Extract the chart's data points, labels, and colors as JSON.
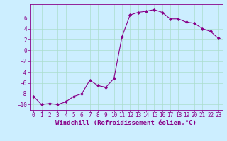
{
  "x": [
    0,
    1,
    2,
    3,
    4,
    5,
    6,
    7,
    8,
    9,
    10,
    11,
    12,
    13,
    14,
    15,
    16,
    17,
    18,
    19,
    20,
    21,
    22,
    23
  ],
  "y": [
    -8.5,
    -10.0,
    -9.8,
    -10.0,
    -9.5,
    -8.5,
    -8.0,
    -5.5,
    -6.5,
    -6.8,
    -5.2,
    2.5,
    6.5,
    7.0,
    7.2,
    7.5,
    7.0,
    5.8,
    5.8,
    5.2,
    5.0,
    4.0,
    3.5,
    2.2
  ],
  "line_color": "#880088",
  "marker": "D",
  "markersize": 2.0,
  "linewidth": 0.8,
  "bg_color": "#cceeff",
  "grid_color": "#aaddcc",
  "xlabel": "Windchill (Refroidissement éolien,°C)",
  "xlim": [
    -0.5,
    23.5
  ],
  "ylim": [
    -11,
    8.5
  ],
  "yticks": [
    -10,
    -8,
    -6,
    -4,
    -2,
    0,
    2,
    4,
    6
  ],
  "xticks": [
    0,
    1,
    2,
    3,
    4,
    5,
    6,
    7,
    8,
    9,
    10,
    11,
    12,
    13,
    14,
    15,
    16,
    17,
    18,
    19,
    20,
    21,
    22,
    23
  ],
  "tick_color": "#880088",
  "label_color": "#880088",
  "label_fontsize": 6.5,
  "tick_fontsize": 5.5
}
